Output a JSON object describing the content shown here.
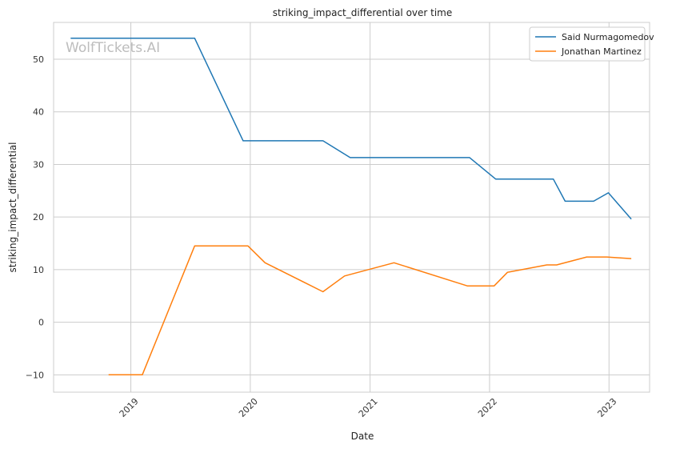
{
  "chart_data": {
    "type": "line",
    "title": "striking_impact_differential over time",
    "xlabel": "Date",
    "ylabel": "striking_impact_differential",
    "watermark": "WolfTickets.AI",
    "xlim": [
      "2018-05-10",
      "2023-05-05"
    ],
    "ylim": [
      -13.3,
      57.0
    ],
    "y_ticks": [
      -10,
      0,
      10,
      20,
      30,
      40,
      50
    ],
    "y_tick_labels": [
      "−10",
      "0",
      "10",
      "20",
      "30",
      "40",
      "50"
    ],
    "x_ticks": [
      "2019-01-01",
      "2020-01-01",
      "2021-01-01",
      "2022-01-01",
      "2023-01-01"
    ],
    "x_tick_labels": [
      "2019",
      "2020",
      "2021",
      "2022",
      "2023"
    ],
    "grid": true,
    "legend_position": "top-right",
    "series": [
      {
        "name": "Said Nurmagomedov",
        "color": "#1f77b4",
        "points": [
          [
            "2018-07-01",
            54.0
          ],
          [
            "2019-07-15",
            54.0
          ],
          [
            "2019-12-10",
            34.5
          ],
          [
            "2020-08-10",
            34.5
          ],
          [
            "2020-11-01",
            31.3
          ],
          [
            "2021-11-01",
            31.3
          ],
          [
            "2022-01-20",
            27.2
          ],
          [
            "2022-07-15",
            27.2
          ],
          [
            "2022-08-20",
            23.0
          ],
          [
            "2022-11-15",
            23.0
          ],
          [
            "2022-12-30",
            24.6
          ],
          [
            "2023-03-10",
            19.6
          ]
        ]
      },
      {
        "name": "Jonathan Martinez",
        "color": "#ff7f0e",
        "points": [
          [
            "2018-10-25",
            -10.0
          ],
          [
            "2019-02-05",
            -10.0
          ],
          [
            "2019-07-15",
            14.5
          ],
          [
            "2019-12-25",
            14.5
          ],
          [
            "2020-02-15",
            11.3
          ],
          [
            "2020-08-10",
            5.8
          ],
          [
            "2020-10-15",
            8.8
          ],
          [
            "2021-03-15",
            11.3
          ],
          [
            "2021-10-25",
            6.9
          ],
          [
            "2022-01-15",
            6.9
          ],
          [
            "2022-02-25",
            9.5
          ],
          [
            "2022-06-25",
            10.9
          ],
          [
            "2022-07-25",
            10.9
          ],
          [
            "2022-10-25",
            12.4
          ],
          [
            "2022-12-25",
            12.4
          ],
          [
            "2023-03-10",
            12.1
          ]
        ]
      }
    ]
  }
}
